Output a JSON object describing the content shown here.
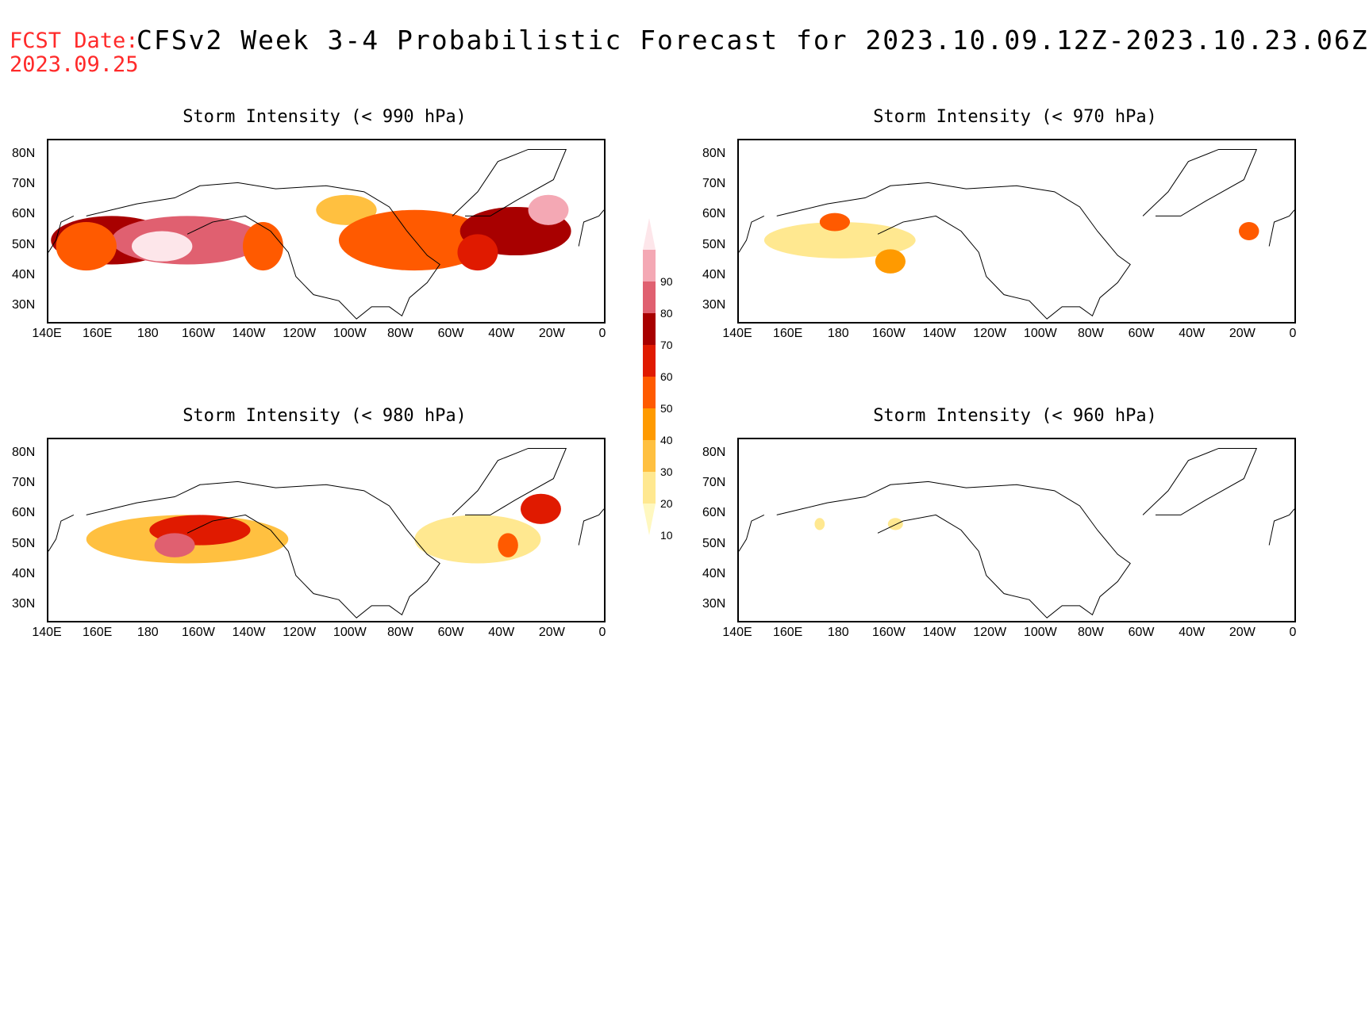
{
  "header": {
    "fcst_label": "FCST Date:",
    "fcst_date": "2023.09.25",
    "title": "CFSv2 Week 3-4 Probabilistic Forecast for 2023.10.09.12Z-2023.10.23.06Z"
  },
  "axes": {
    "lat_labels": [
      "80N",
      "70N",
      "60N",
      "50N",
      "40N",
      "30N"
    ],
    "lat_values": [
      80,
      70,
      60,
      50,
      40,
      30
    ],
    "lon_labels": [
      "140E",
      "160E",
      "180",
      "160W",
      "140W",
      "120W",
      "100W",
      "80W",
      "60W",
      "40W",
      "20W",
      "0"
    ],
    "lon_values": [
      140,
      160,
      180,
      200,
      220,
      240,
      260,
      280,
      300,
      320,
      340,
      360
    ],
    "lat_range": [
      25,
      85
    ],
    "lon_range": [
      140,
      360
    ]
  },
  "colorbar": {
    "levels": [
      "10",
      "20",
      "30",
      "40",
      "50",
      "60",
      "70",
      "80",
      "90"
    ],
    "colors": [
      "#fff8c0",
      "#ffe890",
      "#ffc040",
      "#ff9a00",
      "#ff5a00",
      "#e01a00",
      "#a80000",
      "#e06070",
      "#f4a8b4",
      "#fde6ea"
    ]
  },
  "panels": [
    {
      "title": "Storm Intensity (< 990 hPa)",
      "blobs": [
        {
          "lon": 165,
          "lat": 52,
          "rlon": 24,
          "rlat": 8,
          "level": 6
        },
        {
          "lon": 195,
          "lat": 52,
          "rlon": 30,
          "rlat": 8,
          "level": 7
        },
        {
          "lon": 185,
          "lat": 50,
          "rlon": 12,
          "rlat": 5,
          "level": 9
        },
        {
          "lon": 155,
          "lat": 50,
          "rlon": 12,
          "rlat": 8,
          "level": 4
        },
        {
          "lon": 225,
          "lat": 50,
          "rlon": 8,
          "rlat": 8,
          "level": 4
        },
        {
          "lon": 258,
          "lat": 62,
          "rlon": 12,
          "rlat": 5,
          "level": 2
        },
        {
          "lon": 285,
          "lat": 52,
          "rlon": 30,
          "rlat": 10,
          "level": 4
        },
        {
          "lon": 325,
          "lat": 55,
          "rlon": 22,
          "rlat": 8,
          "level": 6
        },
        {
          "lon": 310,
          "lat": 48,
          "rlon": 8,
          "rlat": 6,
          "level": 5
        },
        {
          "lon": 338,
          "lat": 62,
          "rlon": 8,
          "rlat": 5,
          "level": 8
        }
      ]
    },
    {
      "title": "Storm Intensity (< 970 hPa)",
      "blobs": [
        {
          "lon": 180,
          "lat": 52,
          "rlon": 30,
          "rlat": 6,
          "level": 1
        },
        {
          "lon": 178,
          "lat": 58,
          "rlon": 6,
          "rlat": 3,
          "level": 4
        },
        {
          "lon": 200,
          "lat": 45,
          "rlon": 6,
          "rlat": 4,
          "level": 3
        },
        {
          "lon": 342,
          "lat": 55,
          "rlon": 4,
          "rlat": 3,
          "level": 4
        }
      ]
    },
    {
      "title": "Storm Intensity (< 980 hPa)",
      "blobs": [
        {
          "lon": 195,
          "lat": 52,
          "rlon": 40,
          "rlat": 8,
          "level": 2
        },
        {
          "lon": 200,
          "lat": 55,
          "rlon": 20,
          "rlat": 5,
          "level": 5
        },
        {
          "lon": 190,
          "lat": 50,
          "rlon": 8,
          "rlat": 4,
          "level": 7
        },
        {
          "lon": 310,
          "lat": 52,
          "rlon": 25,
          "rlat": 8,
          "level": 1
        },
        {
          "lon": 335,
          "lat": 62,
          "rlon": 8,
          "rlat": 5,
          "level": 5
        },
        {
          "lon": 322,
          "lat": 50,
          "rlon": 4,
          "rlat": 4,
          "level": 4
        }
      ]
    },
    {
      "title": "Storm Intensity (< 960 hPa)",
      "blobs": [
        {
          "lon": 202,
          "lat": 57,
          "rlon": 3,
          "rlat": 2,
          "level": 1
        },
        {
          "lon": 172,
          "lat": 57,
          "rlon": 2,
          "rlat": 2,
          "level": 1
        }
      ]
    }
  ]
}
